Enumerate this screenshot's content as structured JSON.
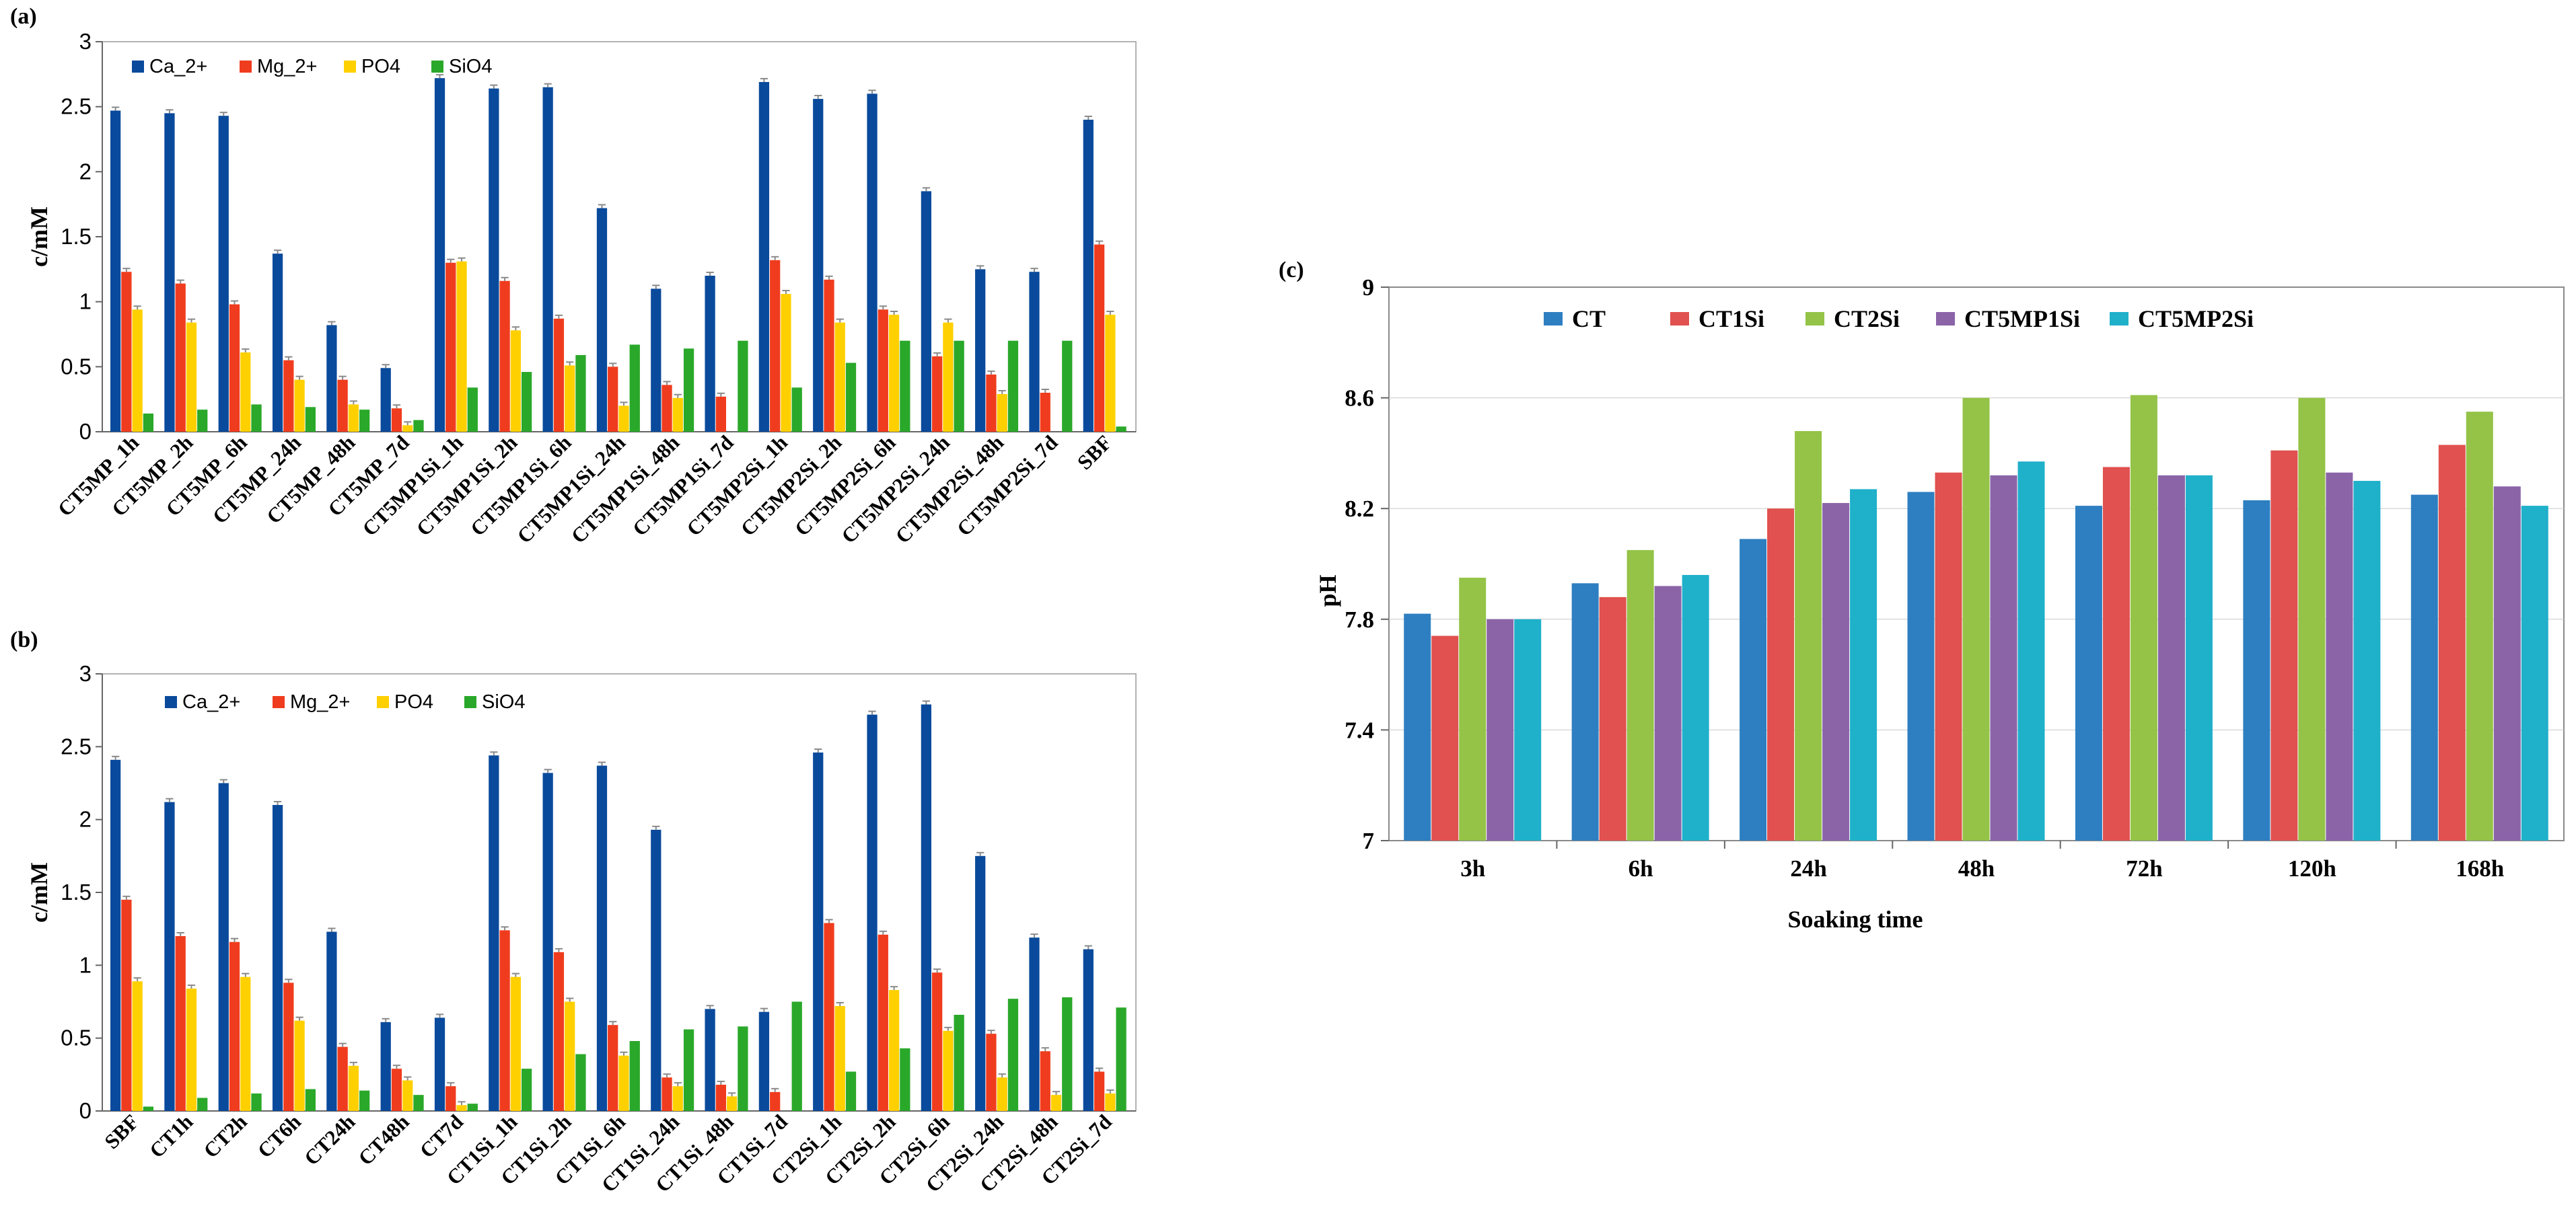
{
  "chart_data": [
    {
      "panel": "(a)",
      "type": "bar",
      "ylabel": "c/mM",
      "ylim": [
        0,
        3
      ],
      "yticks": [
        0,
        0.5,
        1,
        1.5,
        2,
        2.5,
        3
      ],
      "legend_position": "top-left",
      "categories": [
        "CT5MP_1h",
        "CT5MP_2h",
        "CT5MP_6h",
        "CT5MP_24h",
        "CT5MP_48h",
        "CT5MP_7d",
        "CT5MP1Si_1h",
        "CT5MP1Si_2h",
        "CT5MP1Si_6h",
        "CT5MP1Si_24h",
        "CT5MP1Si_48h",
        "CT5MP1Si_7d",
        "CT5MP2Si_1h",
        "CT5MP2Si_2h",
        "CT5MP2Si_6h",
        "CT5MP2Si_24h",
        "CT5MP2Si_48h",
        "CT5MP2Si_7d",
        "SBF"
      ],
      "series": [
        {
          "name": "Ca_2+",
          "color": "#0a4a9c",
          "values": [
            2.47,
            2.45,
            2.43,
            1.37,
            0.82,
            0.49,
            2.72,
            2.64,
            2.65,
            1.72,
            1.1,
            1.2,
            2.69,
            2.56,
            2.6,
            1.85,
            1.25,
            1.23,
            2.4
          ]
        },
        {
          "name": "Mg_2+",
          "color": "#f03c1e",
          "values": [
            1.23,
            1.14,
            0.98,
            0.55,
            0.4,
            0.18,
            1.3,
            1.16,
            0.87,
            0.5,
            0.36,
            0.27,
            1.32,
            1.17,
            0.94,
            0.58,
            0.44,
            0.3,
            1.44
          ]
        },
        {
          "name": "PO4",
          "color": "#ffd000",
          "values": [
            0.94,
            0.84,
            0.61,
            0.4,
            0.21,
            0.05,
            1.31,
            0.78,
            0.51,
            0.2,
            0.26,
            0,
            1.06,
            0.84,
            0.9,
            0.84,
            0.29,
            0,
            0.9
          ]
        },
        {
          "name": "SiO4",
          "color": "#2aa82a",
          "values": [
            0.14,
            0.17,
            0.21,
            0.19,
            0.17,
            0.09,
            0.34,
            0.46,
            0.59,
            0.67,
            0.64,
            0.7,
            0.34,
            0.53,
            0.7,
            0.7,
            0.7,
            0.7,
            0.04
          ]
        }
      ]
    },
    {
      "panel": "(b)",
      "type": "bar",
      "ylabel": "c/mM",
      "ylim": [
        0,
        3
      ],
      "yticks": [
        0,
        0.5,
        1,
        1.5,
        2,
        2.5,
        3
      ],
      "legend_position": "top-left",
      "categories": [
        "SBF",
        "CT1h",
        "CT2h",
        "CT6h",
        "CT24h",
        "CT48h",
        "CT7d",
        "CT1Si_1h",
        "CT1Si_2h",
        "CT1Si_6h",
        "CT1Si_24h",
        "CT1Si_48h",
        "CT1Si_7d",
        "CT2Si_1h",
        "CT2Si_2h",
        "CT2Si_6h",
        "CT2Si_24h",
        "CT2Si_48h",
        "CT2Si_7d"
      ],
      "series": [
        {
          "name": "Ca_2+",
          "color": "#0a4a9c",
          "values": [
            2.41,
            2.12,
            2.25,
            2.1,
            1.23,
            0.61,
            0.64,
            2.44,
            2.32,
            2.37,
            1.93,
            0.7,
            0.68,
            2.46,
            2.72,
            2.79,
            1.75,
            1.19,
            1.11
          ]
        },
        {
          "name": "Mg_2+",
          "color": "#f03c1e",
          "values": [
            1.45,
            1.2,
            1.16,
            0.88,
            0.44,
            0.29,
            0.17,
            1.24,
            1.09,
            0.59,
            0.23,
            0.18,
            0.13,
            1.29,
            1.21,
            0.95,
            0.53,
            0.41,
            0.27
          ]
        },
        {
          "name": "PO4",
          "color": "#ffd000",
          "values": [
            0.89,
            0.84,
            0.92,
            0.62,
            0.31,
            0.21,
            0.04,
            0.92,
            0.75,
            0.38,
            0.17,
            0.1,
            0,
            0.72,
            0.83,
            0.55,
            0.23,
            0.11,
            0.12
          ]
        },
        {
          "name": "SiO4",
          "color": "#2aa82a",
          "values": [
            0.03,
            0.09,
            0.12,
            0.15,
            0.14,
            0.11,
            0.05,
            0.29,
            0.39,
            0.48,
            0.56,
            0.58,
            0.75,
            0.27,
            0.43,
            0.66,
            0.77,
            0.78,
            0.71
          ]
        }
      ]
    },
    {
      "panel": "(c)",
      "type": "bar",
      "xlabel": "Soaking time",
      "ylabel": "pH",
      "ylim": [
        7,
        9
      ],
      "yticks": [
        7,
        7.4,
        7.8,
        8.2,
        8.6,
        9
      ],
      "legend_position": "top",
      "categories": [
        "3h",
        "6h",
        "24h",
        "48h",
        "72h",
        "120h",
        "168h"
      ],
      "series": [
        {
          "name": "CT",
          "color": "#2e7fc1",
          "values": [
            7.82,
            7.93,
            8.09,
            8.26,
            8.21,
            8.23,
            8.25
          ]
        },
        {
          "name": "CT1Si",
          "color": "#e0514f",
          "values": [
            7.74,
            7.88,
            8.2,
            8.33,
            8.35,
            8.41,
            8.43
          ]
        },
        {
          "name": "CT2Si",
          "color": "#94c347",
          "values": [
            7.95,
            8.05,
            8.48,
            8.6,
            8.61,
            8.6,
            8.55
          ]
        },
        {
          "name": "CT5MP1Si",
          "color": "#8b64a8",
          "values": [
            7.8,
            7.92,
            8.22,
            8.32,
            8.32,
            8.33,
            8.28
          ]
        },
        {
          "name": "CT5MP2Si",
          "color": "#1fb0ca",
          "values": [
            7.8,
            7.96,
            8.27,
            8.37,
            8.32,
            8.3,
            8.21
          ]
        }
      ]
    }
  ]
}
